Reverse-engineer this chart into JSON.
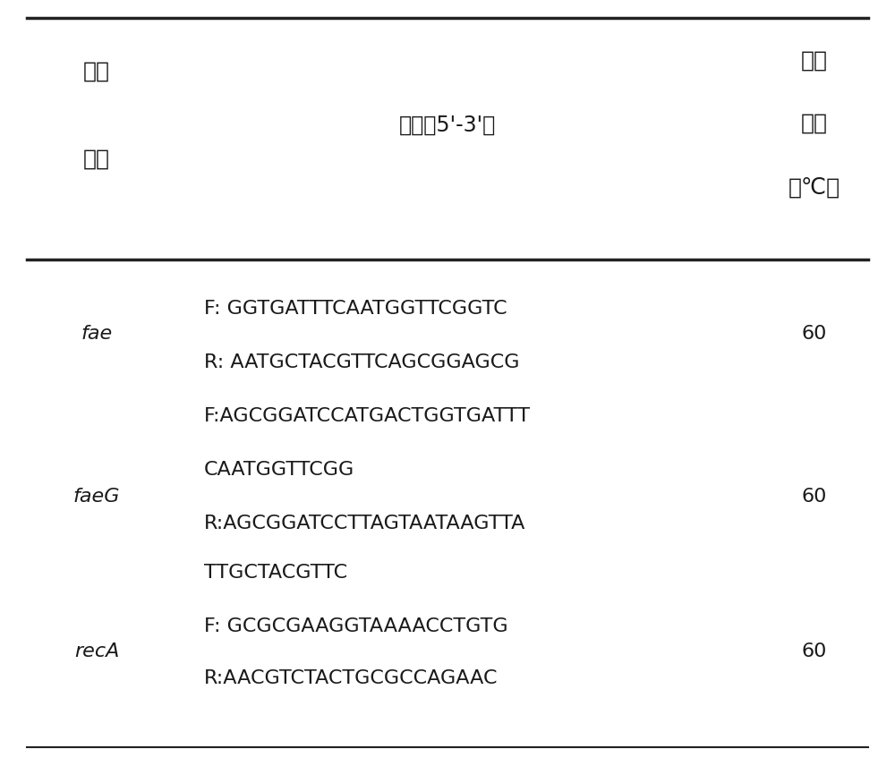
{
  "header_col1_line1": "目标",
  "header_col1_line2": "菌属",
  "header_col2": "引物（5'-3'）",
  "header_col3_line1": "退火",
  "header_col3_line2": "温度",
  "header_col3_line3": "（℃）",
  "rows": [
    {
      "gene": "fae",
      "primers": [
        "F: GGTGATTTCAATGGTTCGGTC",
        "R: AATGCTACGTTCAGCGGAGCG"
      ],
      "temp": "60"
    },
    {
      "gene": "faeG",
      "primers": [
        "F:AGCGGATCCATGACTGGTGATTT",
        "CAATGGTTCGG",
        "R:AGCGGATCCTTAGTAATAAGTTA",
        "TTGCTACGTTC"
      ],
      "temp": "60"
    },
    {
      "gene": "recA",
      "primers": [
        "F: GCGCGAAGGTAAAACCTGTG",
        "R:AACGTCTACTGCGCCAGAAC"
      ],
      "temp": "60"
    }
  ],
  "bg_color": "#ffffff",
  "text_color": "#1a1a1a",
  "line_color": "#222222",
  "font_size_body": 16,
  "font_size_header_cn": 18,
  "font_size_header_primer": 17
}
